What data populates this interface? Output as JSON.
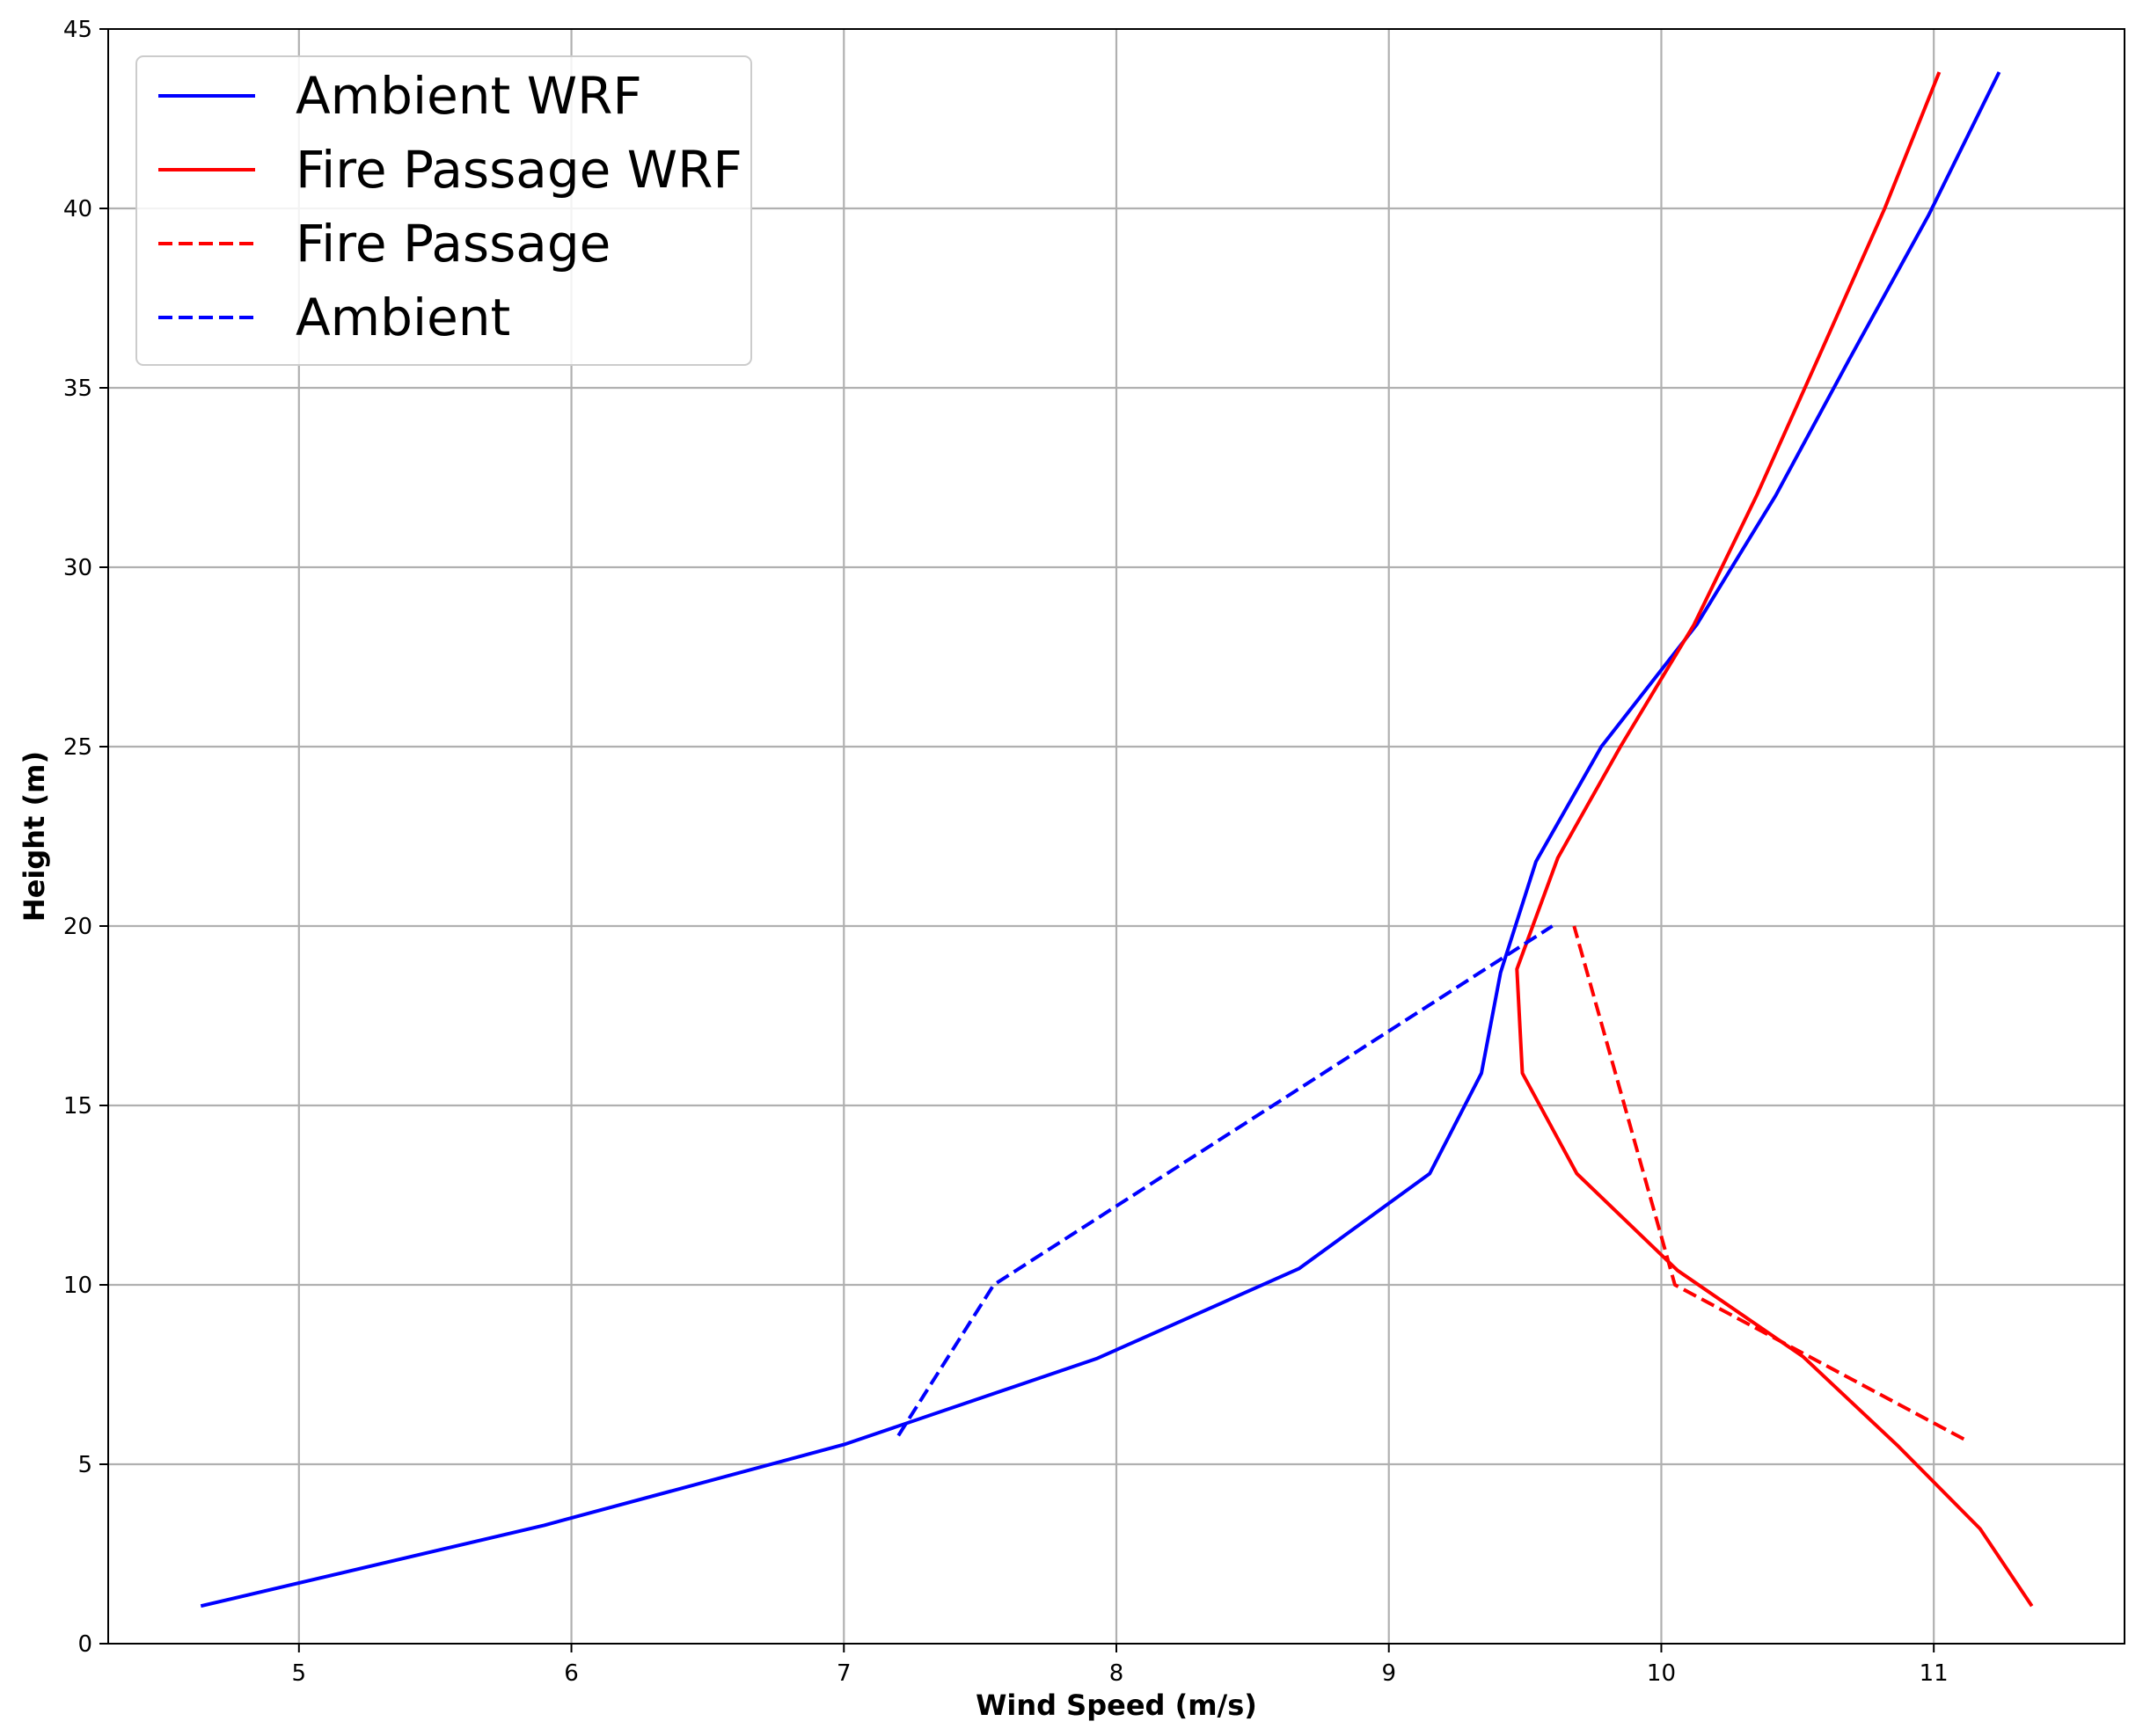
{
  "chart_data": {
    "type": "line",
    "title": "",
    "xlabel": "Wind Speed (m/s)",
    "ylabel": "Height (m)",
    "xlim": [
      4.3,
      11.7
    ],
    "ylim": [
      0,
      45
    ],
    "xticks": [
      5,
      6,
      7,
      8,
      9,
      10,
      11
    ],
    "yticks": [
      0,
      5,
      10,
      15,
      20,
      25,
      30,
      35,
      40,
      45
    ],
    "grid": true,
    "legend_position": "top-left",
    "series": [
      {
        "name": "Ambient WRF",
        "color": "#0000ff",
        "style": "solid",
        "x": [
          4.64,
          5.9,
          7.0,
          7.93,
          8.67,
          9.15,
          9.34,
          9.41,
          9.54,
          9.78,
          10.13,
          10.42,
          10.69,
          10.98,
          11.24
        ],
        "y": [
          1.05,
          3.3,
          5.55,
          7.95,
          10.45,
          13.1,
          15.9,
          18.7,
          21.8,
          25.0,
          28.4,
          32.0,
          35.8,
          39.8,
          43.8
        ]
      },
      {
        "name": "Fire Passage WRF",
        "color": "#ff0000",
        "style": "solid",
        "x": [
          11.36,
          11.17,
          10.87,
          10.52,
          10.06,
          9.69,
          9.49,
          9.47,
          9.62,
          9.85,
          10.12,
          10.35,
          10.58,
          10.82,
          11.02
        ],
        "y": [
          1.05,
          3.2,
          5.5,
          8.0,
          10.4,
          13.1,
          15.9,
          18.8,
          21.9,
          25.0,
          28.4,
          32.0,
          35.9,
          40.0,
          43.8
        ]
      },
      {
        "name": "Fire Passage",
        "color": "#ff0000",
        "style": "dashed",
        "x": [
          11.11,
          10.05,
          9.68
        ],
        "y": [
          5.7,
          10.0,
          20.0
        ]
      },
      {
        "name": "Ambient",
        "color": "#0000ff",
        "style": "dashed",
        "x": [
          7.2,
          7.55,
          9.6
        ],
        "y": [
          5.8,
          10.0,
          20.0
        ]
      }
    ]
  }
}
